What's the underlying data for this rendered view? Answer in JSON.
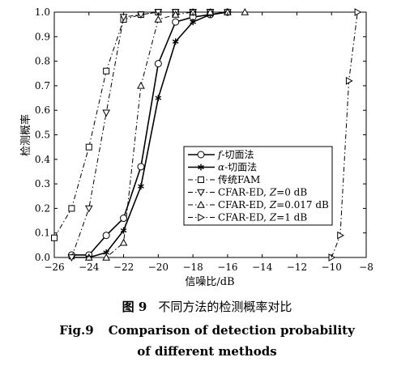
{
  "chart_data": {
    "type": "line",
    "xlabel": "信噪比/dB",
    "ylabel": "检测概率",
    "xlim": [
      -26,
      -8
    ],
    "ylim": [
      0,
      1
    ],
    "xticks": [
      -26,
      -24,
      -22,
      -20,
      -18,
      -16,
      -14,
      -12,
      -10,
      -8
    ],
    "yticks": [
      0.0,
      0.1,
      0.2,
      0.3,
      0.4,
      0.5,
      0.6,
      0.7,
      0.8,
      0.9,
      1.0
    ],
    "ytick_labels": [
      "0.0",
      "0.1",
      "0.2",
      "0.3",
      "0.4",
      "0.5",
      "0.6",
      "0.7",
      "0.8",
      "0.9",
      "1.0"
    ],
    "legend_position": "center-right",
    "series": [
      {
        "name": "f-切面法",
        "marker": "circle",
        "dash": "solid",
        "width": 1.6,
        "x": [
          -25,
          -24,
          -23,
          -22,
          -21,
          -20,
          -19,
          -18,
          -17,
          -16
        ],
        "y": [
          0.01,
          0.01,
          0.09,
          0.16,
          0.37,
          0.79,
          0.96,
          0.98,
          0.99,
          1.0
        ]
      },
      {
        "name": "α-切面法",
        "marker": "star",
        "dash": "solid",
        "width": 1.6,
        "x": [
          -25,
          -24,
          -23,
          -22,
          -21,
          -20,
          -19,
          -18,
          -17,
          -16
        ],
        "y": [
          0.0,
          0.0,
          0.02,
          0.11,
          0.29,
          0.65,
          0.88,
          0.96,
          0.99,
          1.0
        ]
      },
      {
        "name": "传统FAM",
        "marker": "square",
        "dash": "dashdot",
        "width": 1,
        "x": [
          -26,
          -25,
          -24,
          -23,
          -22,
          -21,
          -20,
          -19,
          -18,
          -17
        ],
        "y": [
          0.08,
          0.2,
          0.45,
          0.76,
          0.97,
          0.99,
          1.0,
          1.0,
          1.0,
          1.0
        ]
      },
      {
        "name": "CFAR-ED, Z=0 dB",
        "marker": "tri-down",
        "dash": "dashdot",
        "width": 1,
        "x": [
          -25,
          -24,
          -23,
          -22,
          -21,
          -20,
          -19,
          -18,
          -17,
          -16
        ],
        "y": [
          0.0,
          0.2,
          0.59,
          0.98,
          0.99,
          1.0,
          1.0,
          1.0,
          1.0,
          1.0
        ]
      },
      {
        "name": "CFAR-ED, Z=0.017 dB",
        "marker": "tri-up",
        "dash": "dashdot",
        "width": 1,
        "x": [
          -24,
          -23,
          -22,
          -21,
          -20,
          -19,
          -18,
          -17,
          -16,
          -15
        ],
        "y": [
          0.0,
          0.0,
          0.06,
          0.7,
          0.97,
          0.99,
          1.0,
          1.0,
          1.0,
          1.0
        ]
      },
      {
        "name": "CFAR-ED, Z=1 dB",
        "marker": "tri-right",
        "dash": "dashdot",
        "width": 1,
        "x": [
          -10,
          -9.5,
          -9,
          -8.5
        ],
        "y": [
          0.0,
          0.09,
          0.72,
          1.0
        ]
      }
    ]
  },
  "legend_labels": [
    {
      "prefix": "",
      "italic": "f",
      "suffix": "-切面法"
    },
    {
      "prefix": "",
      "italic": "α",
      "suffix": "-切面法"
    },
    {
      "prefix": "传统FAM",
      "italic": "",
      "suffix": ""
    },
    {
      "prefix": "CFAR-ED, ",
      "italic": "Z",
      "suffix": "=0 dB"
    },
    {
      "prefix": "CFAR-ED, ",
      "italic": "Z",
      "suffix": "=0.017 dB"
    },
    {
      "prefix": "CFAR-ED, ",
      "italic": "Z",
      "suffix": "=1 dB"
    }
  ],
  "caption": {
    "cn_number": "图 9",
    "cn_text": "不同方法的检测概率对比",
    "en_number": "Fig.9",
    "en_line1": "Comparison of detection probability",
    "en_line2": "of different methods"
  }
}
